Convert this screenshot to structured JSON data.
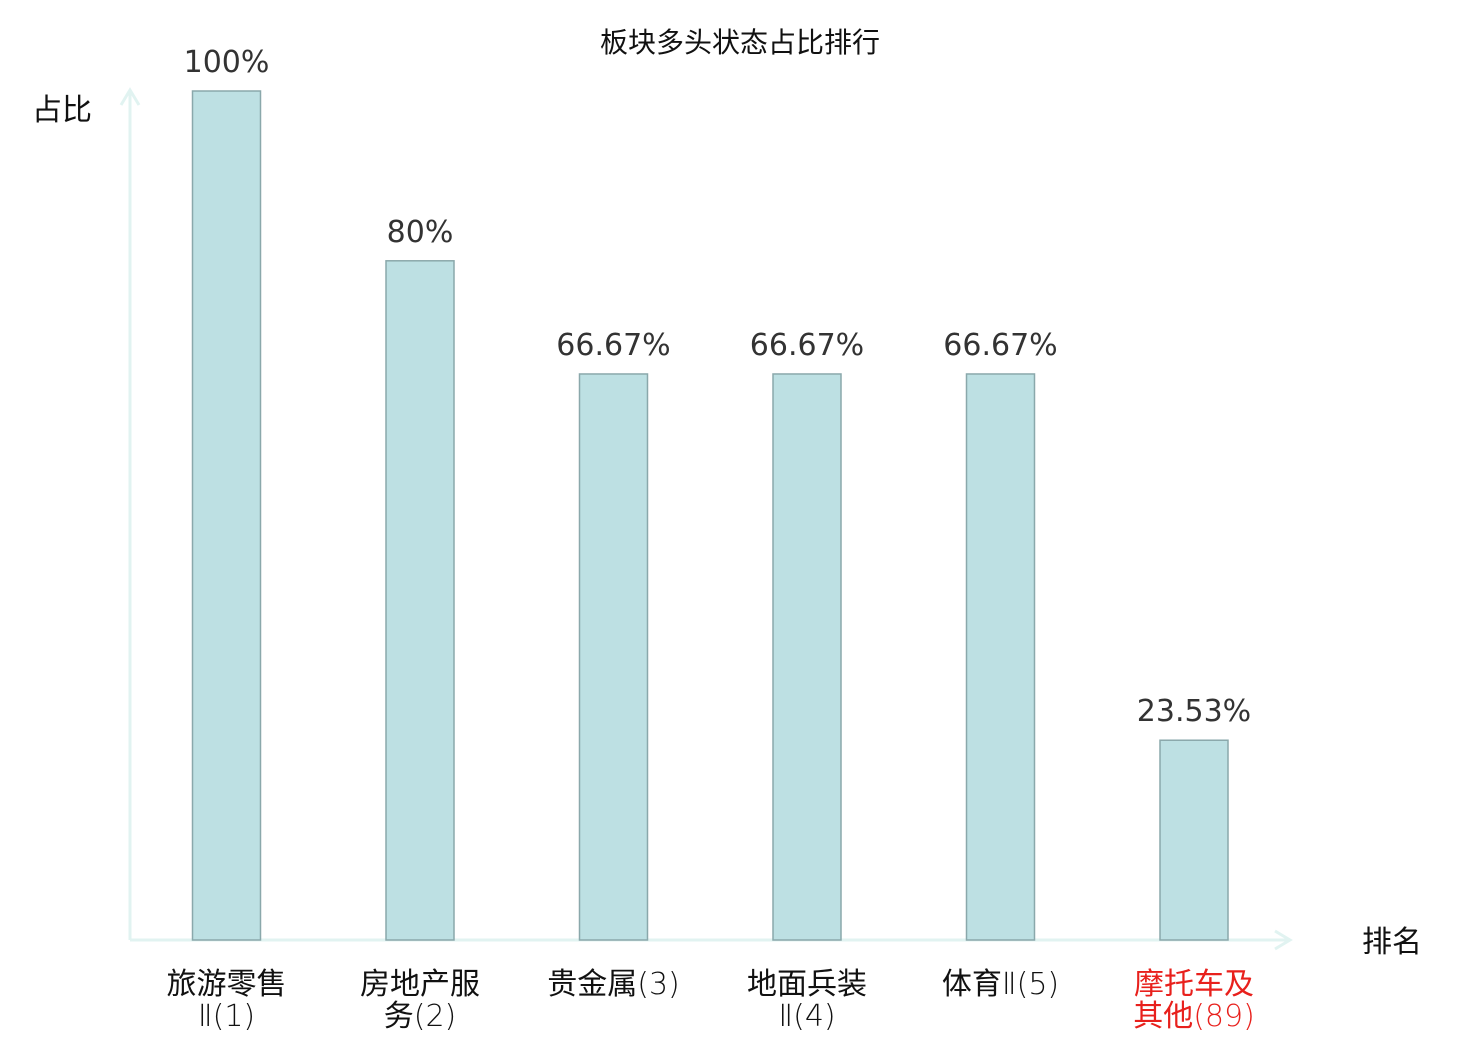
{
  "chart_data": {
    "type": "bar",
    "title": "板块多头状态占比排行",
    "xlabel": "排名",
    "ylabel": "占比",
    "ylim": [
      0,
      100
    ],
    "grid": false,
    "categories": [
      {
        "name_lines": [
          "旅游零售",
          "Ⅱ(1)"
        ],
        "highlight": false
      },
      {
        "name_lines": [
          "房地产服",
          "务(2)"
        ],
        "highlight": false
      },
      {
        "name_lines": [
          "贵金属(3)"
        ],
        "highlight": false
      },
      {
        "name_lines": [
          "地面兵装",
          "Ⅱ(4)"
        ],
        "highlight": false
      },
      {
        "name_lines": [
          "体育Ⅱ(5)"
        ],
        "highlight": false
      },
      {
        "name_lines": [
          "摩托车及",
          "其他(89)"
        ],
        "highlight": true
      }
    ],
    "values": [
      100,
      80,
      66.67,
      66.67,
      66.67,
      23.53
    ],
    "value_labels": [
      "100%",
      "80%",
      "66.67%",
      "66.67%",
      "66.67%",
      "23.53%"
    ],
    "colors": {
      "bar_fill": "#bde0e3",
      "bar_stroke": "#8aa8ab",
      "axis": "#e1f3f1",
      "label": "#111111",
      "highlight": "#e8201c"
    }
  }
}
